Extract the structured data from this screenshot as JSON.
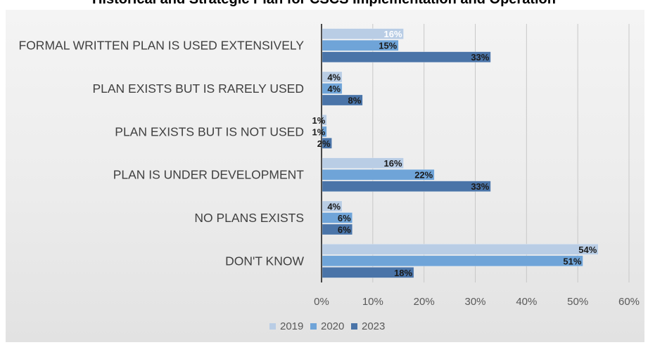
{
  "chart_data": {
    "type": "bar",
    "orientation": "horizontal",
    "title": "Historical and Strategic Plan for CSCS Implementation and Operation",
    "categories": [
      "FORMAL WRITTEN PLAN IS USED EXTENSIVELY",
      "PLAN EXISTS BUT IS RARELY USED",
      "PLAN EXISTS BUT IS NOT USED",
      "PLAN IS UNDER DEVELOPMENT",
      "NO PLANS EXISTS",
      "DON'T KNOW"
    ],
    "series": [
      {
        "name": "2019",
        "color": "#b9cde5",
        "values": [
          16,
          4,
          1,
          16,
          4,
          54
        ]
      },
      {
        "name": "2020",
        "color": "#6fa4d8",
        "values": [
          15,
          4,
          1,
          22,
          6,
          51
        ]
      },
      {
        "name": "2023",
        "color": "#4a74a8",
        "values": [
          33,
          8,
          2,
          33,
          6,
          18
        ]
      }
    ],
    "value_labels": [
      [
        "16%",
        "4%",
        "1%",
        "16%",
        "4%",
        "54%"
      ],
      [
        "15%",
        "4%",
        "1%",
        "22%",
        "6%",
        "51%"
      ],
      [
        "33%",
        "8%",
        "2%",
        "33%",
        "6%",
        "18%"
      ]
    ],
    "xlim": [
      0,
      60
    ],
    "x_ticks": [
      "0%",
      "10%",
      "20%",
      "30%",
      "40%",
      "50%",
      "60%"
    ],
    "grid": true,
    "legend_position": "bottom"
  }
}
